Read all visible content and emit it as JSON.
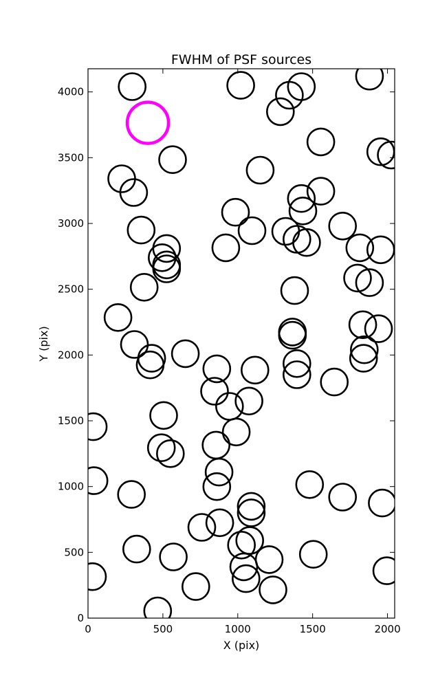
{
  "chart_data": {
    "type": "scatter",
    "title": "FWHM of PSF sources",
    "xlabel": "X (pix)",
    "ylabel": "Y (pix)",
    "xlim": [
      0,
      2048
    ],
    "ylim": [
      0,
      4176
    ],
    "xticks": [
      0,
      500,
      1000,
      1500,
      2000
    ],
    "yticks": [
      0,
      500,
      1000,
      1500,
      2000,
      2500,
      3000,
      3500,
      4000
    ],
    "grid": false,
    "marker": "open circle",
    "marker_color": "#000000",
    "highlight_color": "#ff00ff",
    "series": [
      {
        "highlight": false,
        "points": [
          [
            295,
            4040
          ],
          [
            1020,
            4050
          ],
          [
            1345,
            3975
          ],
          [
            1425,
            4040
          ],
          [
            1285,
            3850
          ],
          [
            1880,
            4120
          ],
          [
            1555,
            3620
          ],
          [
            1955,
            3545
          ],
          [
            2025,
            3520
          ],
          [
            565,
            3485
          ],
          [
            1150,
            3405
          ],
          [
            225,
            3340
          ],
          [
            305,
            3235
          ],
          [
            1425,
            3190
          ],
          [
            1555,
            3245
          ],
          [
            985,
            3085
          ],
          [
            1435,
            3095
          ],
          [
            355,
            2950
          ],
          [
            1095,
            2945
          ],
          [
            1320,
            2940
          ],
          [
            1700,
            2980
          ],
          [
            1395,
            2880
          ],
          [
            1460,
            2855
          ],
          [
            920,
            2815
          ],
          [
            1815,
            2815
          ],
          [
            1955,
            2800
          ],
          [
            525,
            2810
          ],
          [
            495,
            2740
          ],
          [
            525,
            2685
          ],
          [
            525,
            2655
          ],
          [
            375,
            2515
          ],
          [
            1380,
            2490
          ],
          [
            1800,
            2585
          ],
          [
            1880,
            2550
          ],
          [
            200,
            2285
          ],
          [
            1365,
            2175
          ],
          [
            1365,
            2150
          ],
          [
            1835,
            2230
          ],
          [
            1940,
            2200
          ],
          [
            310,
            2080
          ],
          [
            425,
            1975
          ],
          [
            415,
            1925
          ],
          [
            650,
            2010
          ],
          [
            860,
            1895
          ],
          [
            1845,
            2040
          ],
          [
            1840,
            1975
          ],
          [
            1395,
            1935
          ],
          [
            1395,
            1850
          ],
          [
            1115,
            1885
          ],
          [
            1645,
            1795
          ],
          [
            845,
            1725
          ],
          [
            945,
            1610
          ],
          [
            1075,
            1650
          ],
          [
            505,
            1540
          ],
          [
            990,
            1415
          ],
          [
            35,
            1455
          ],
          [
            855,
            1315
          ],
          [
            490,
            1295
          ],
          [
            550,
            1250
          ],
          [
            875,
            1110
          ],
          [
            860,
            1000
          ],
          [
            40,
            1045
          ],
          [
            290,
            940
          ],
          [
            1480,
            1015
          ],
          [
            1700,
            920
          ],
          [
            1965,
            875
          ],
          [
            1090,
            850
          ],
          [
            1090,
            800
          ],
          [
            880,
            725
          ],
          [
            760,
            690
          ],
          [
            1025,
            555
          ],
          [
            1080,
            590
          ],
          [
            325,
            525
          ],
          [
            570,
            465
          ],
          [
            1210,
            445
          ],
          [
            1505,
            485
          ],
          [
            1040,
            390
          ],
          [
            1055,
            300
          ],
          [
            30,
            315
          ],
          [
            720,
            240
          ],
          [
            1235,
            215
          ],
          [
            1995,
            360
          ],
          [
            465,
            55
          ]
        ]
      },
      {
        "highlight": true,
        "points": [
          [
            400,
            3765
          ]
        ]
      }
    ]
  }
}
